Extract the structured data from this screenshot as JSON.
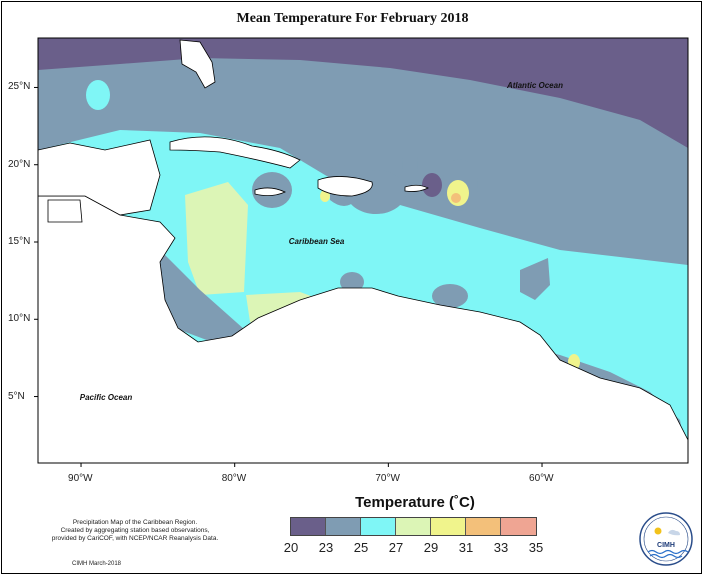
{
  "title": "Mean Temperature For February 2018",
  "map": {
    "region": "Caribbean",
    "extent": {
      "lon": [
        -92.8,
        -50.5
      ],
      "lat": [
        0.7,
        28.2
      ]
    },
    "lat_ticks": [
      {
        "value": 25,
        "label": "25°N"
      },
      {
        "value": 20,
        "label": "20°N"
      },
      {
        "value": 15,
        "label": "15°N"
      },
      {
        "value": 10,
        "label": "10°N"
      },
      {
        "value": 5,
        "label": "5°N"
      }
    ],
    "lon_ticks": [
      {
        "value": -90,
        "label": "90°W"
      },
      {
        "value": -80,
        "label": "80°W"
      },
      {
        "value": -70,
        "label": "70°W"
      },
      {
        "value": -60,
        "label": "60°W"
      }
    ],
    "place_labels": [
      {
        "name": "atlantic",
        "text": "Atlantic Ocean",
        "lon": -60.2,
        "lat": 25.1
      },
      {
        "name": "caribbean",
        "text": "Caribbean Sea",
        "lon": -74.4,
        "lat": 15.0
      },
      {
        "name": "pacific",
        "text": "Pacific Ocean",
        "lon": -88.0,
        "lat": 4.9
      }
    ]
  },
  "legend": {
    "title": "Temperature (˚C)",
    "labels": [
      "20",
      "23",
      "25",
      "27",
      "29",
      "31",
      "33",
      "35"
    ],
    "colors": [
      "#6a5f8a",
      "#7f9cb3",
      "#7ff6f6",
      "#dcf5b6",
      "#f0f48c",
      "#f3c07a",
      "#efa593"
    ]
  },
  "footnote": {
    "line1": "Precipitation Map of the Caribbean Region.",
    "line2": "Created by aggregating station based observations,",
    "line3": "provided by CariCOF, with NCEP/NCAR Reanalysis Data."
  },
  "credit": "CIMH March-2018",
  "logo_text": "CIMH"
}
